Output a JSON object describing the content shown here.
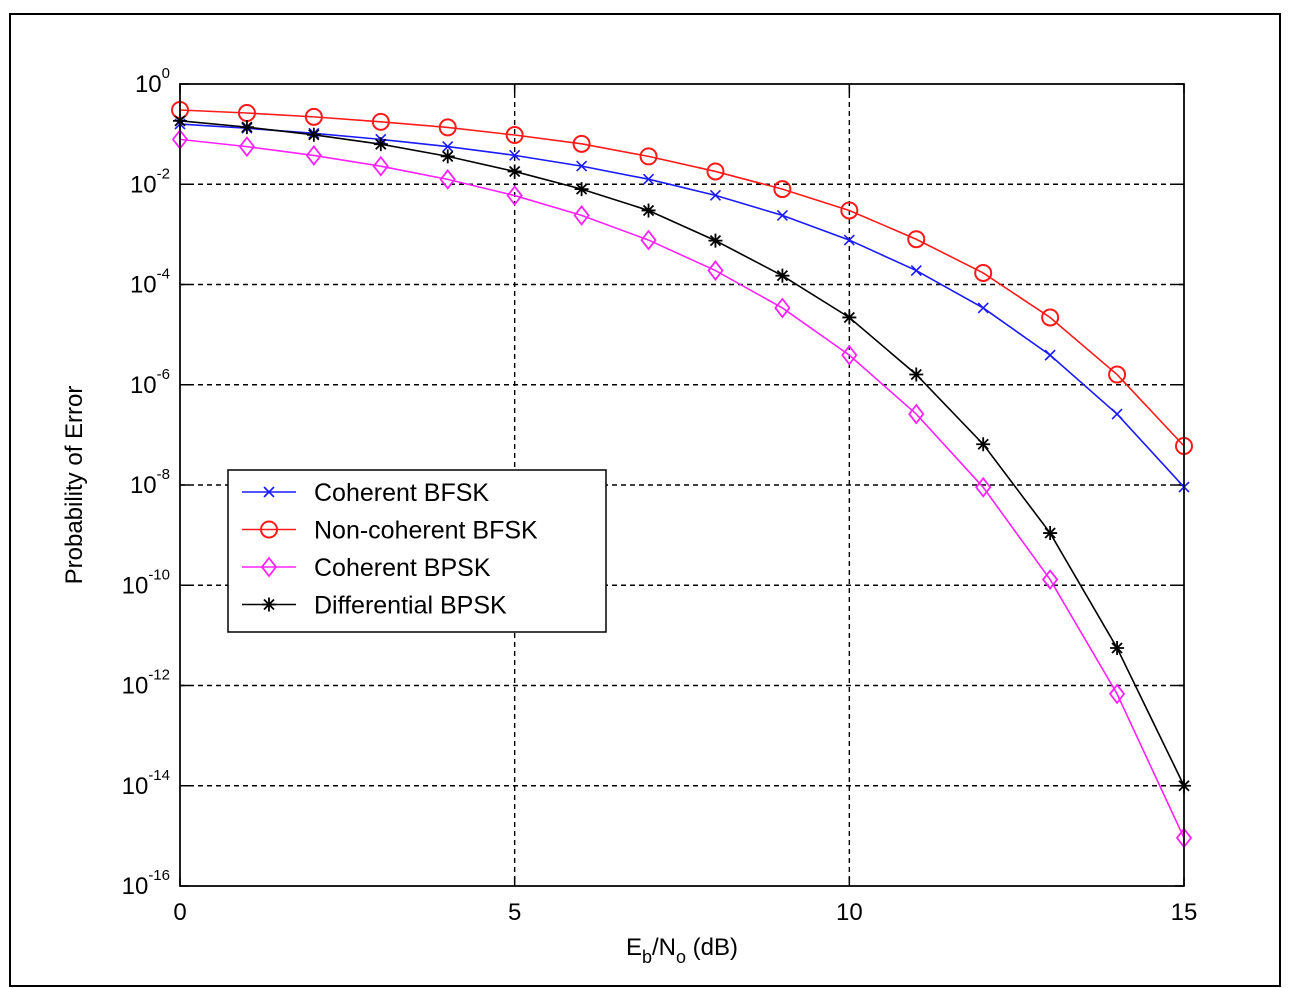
{
  "chart_data": {
    "type": "line",
    "xlabel": {
      "main": "E",
      "sub1": "b",
      "mid": "/N",
      "sub2": "o",
      "tail": " (dB)"
    },
    "ylabel": "Probability of Error",
    "xlim": [
      0,
      15
    ],
    "ylim": [
      1e-16,
      1
    ],
    "yscale": "log",
    "grid": true,
    "legend_position": "center-left",
    "x_ticks": [
      "0",
      "5",
      "10",
      "15"
    ],
    "y_ticks": [
      {
        "base": "10",
        "exp": "0"
      },
      {
        "base": "10",
        "exp": "-2"
      },
      {
        "base": "10",
        "exp": "-4"
      },
      {
        "base": "10",
        "exp": "-6"
      },
      {
        "base": "10",
        "exp": "-8"
      },
      {
        "base": "10",
        "exp": "-10"
      },
      {
        "base": "10",
        "exp": "-12"
      },
      {
        "base": "10",
        "exp": "-14"
      },
      {
        "base": "10",
        "exp": "-16"
      }
    ],
    "x": [
      0,
      1,
      2,
      3,
      4,
      5,
      6,
      7,
      8,
      9,
      10,
      11,
      12,
      13,
      14,
      15
    ],
    "series": [
      {
        "name": "Coherent BFSK",
        "color": "#1a1aff",
        "marker": "x",
        "values": [
          0.159,
          0.131,
          0.104,
          0.0786,
          0.0565,
          0.0377,
          0.023,
          0.0126,
          0.006,
          0.00239,
          0.00077,
          0.00019,
          3.4e-05,
          3.9e-06,
          2.6e-07,
          9.1e-09
        ]
      },
      {
        "name": "Non-coherent BFSK",
        "color": "#ff1a1a",
        "marker": "circle",
        "values": [
          0.303,
          0.264,
          0.221,
          0.176,
          0.136,
          0.096,
          0.064,
          0.036,
          0.018,
          0.008,
          0.003,
          0.0008,
          0.00017,
          2.2e-05,
          1.6e-06,
          6e-08
        ]
      },
      {
        "name": "Coherent BPSK",
        "color": "#ff22ff",
        "marker": "diamond",
        "values": [
          0.0786,
          0.0563,
          0.0375,
          0.0229,
          0.0125,
          0.00595,
          0.00239,
          0.00077,
          0.00019,
          3.4e-05,
          3.9e-06,
          2.6e-07,
          9e-09,
          1.3e-10,
          6.8e-13,
          9.1e-16
        ]
      },
      {
        "name": "Differential BPSK",
        "color": "#000000",
        "marker": "star",
        "values": [
          0.184,
          0.138,
          0.097,
          0.063,
          0.036,
          0.018,
          0.008,
          0.003,
          0.00075,
          0.00015,
          2.2e-05,
          1.6e-06,
          6.5e-08,
          1.1e-09,
          5.6e-12,
          1e-14
        ]
      }
    ]
  }
}
